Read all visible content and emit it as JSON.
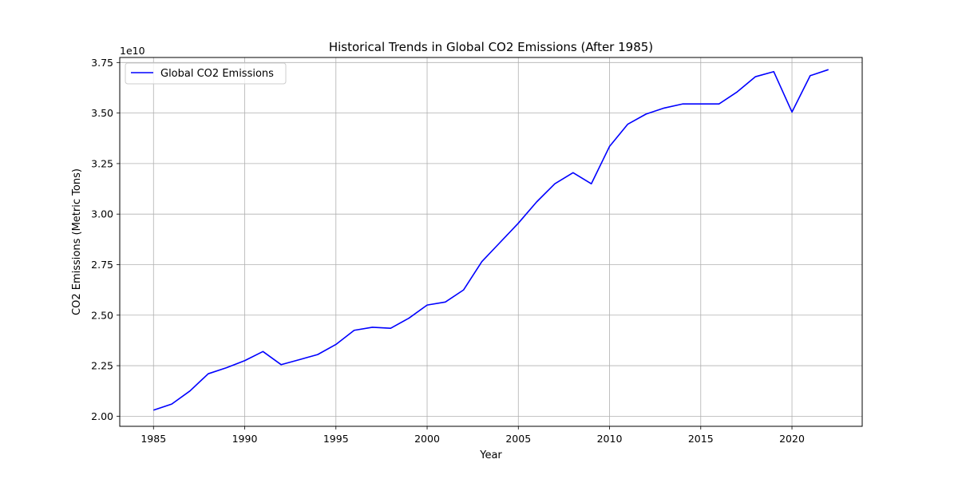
{
  "chart_data": {
    "type": "line",
    "title": "Historical Trends in Global CO2 Emissions (After 1985)",
    "xlabel": "Year",
    "ylabel": "CO2 Emissions (Metric Tons)",
    "y_offset_label": "1e10",
    "xlim": [
      1983.15,
      2023.85
    ],
    "ylim": [
      19500000000.0,
      37750000000.0
    ],
    "x_ticks": [
      1985,
      1990,
      1995,
      2000,
      2005,
      2010,
      2015,
      2020
    ],
    "x_tick_labels": [
      "1985",
      "1990",
      "1995",
      "2000",
      "2005",
      "2010",
      "2015",
      "2020"
    ],
    "y_ticks": [
      20000000000.0,
      22500000000.0,
      25000000000.0,
      27500000000.0,
      30000000000.0,
      32500000000.0,
      35000000000.0,
      37500000000.0
    ],
    "y_tick_labels": [
      "2.00",
      "2.25",
      "2.50",
      "2.75",
      "3.00",
      "3.25",
      "3.50",
      "3.75"
    ],
    "grid": true,
    "legend_position": "upper-left",
    "series": [
      {
        "name": "Global CO2 Emissions",
        "color": "#0000ff",
        "x": [
          1985,
          1986,
          1987,
          1988,
          1989,
          1990,
          1991,
          1992,
          1993,
          1994,
          1995,
          1996,
          1997,
          1998,
          1999,
          2000,
          2001,
          2002,
          2003,
          2004,
          2005,
          2006,
          2007,
          2008,
          2009,
          2010,
          2011,
          2012,
          2013,
          2014,
          2015,
          2016,
          2017,
          2018,
          2019,
          2020,
          2021,
          2022
        ],
        "values": [
          20300000000.0,
          20600000000.0,
          21250000000.0,
          22100000000.0,
          22400000000.0,
          22750000000.0,
          23200000000.0,
          22550000000.0,
          22800000000.0,
          23050000000.0,
          23550000000.0,
          24250000000.0,
          24400000000.0,
          24350000000.0,
          24850000000.0,
          25500000000.0,
          25650000000.0,
          26250000000.0,
          27650000000.0,
          28600000000.0,
          29550000000.0,
          30600000000.0,
          31500000000.0,
          32050000000.0,
          31500000000.0,
          33350000000.0,
          34450000000.0,
          34950000000.0,
          35250000000.0,
          35450000000.0,
          35450000000.0,
          35450000000.0,
          36050000000.0,
          36800000000.0,
          37050000000.0,
          35050000000.0,
          36850000000.0,
          37150000000.0
        ]
      }
    ]
  }
}
